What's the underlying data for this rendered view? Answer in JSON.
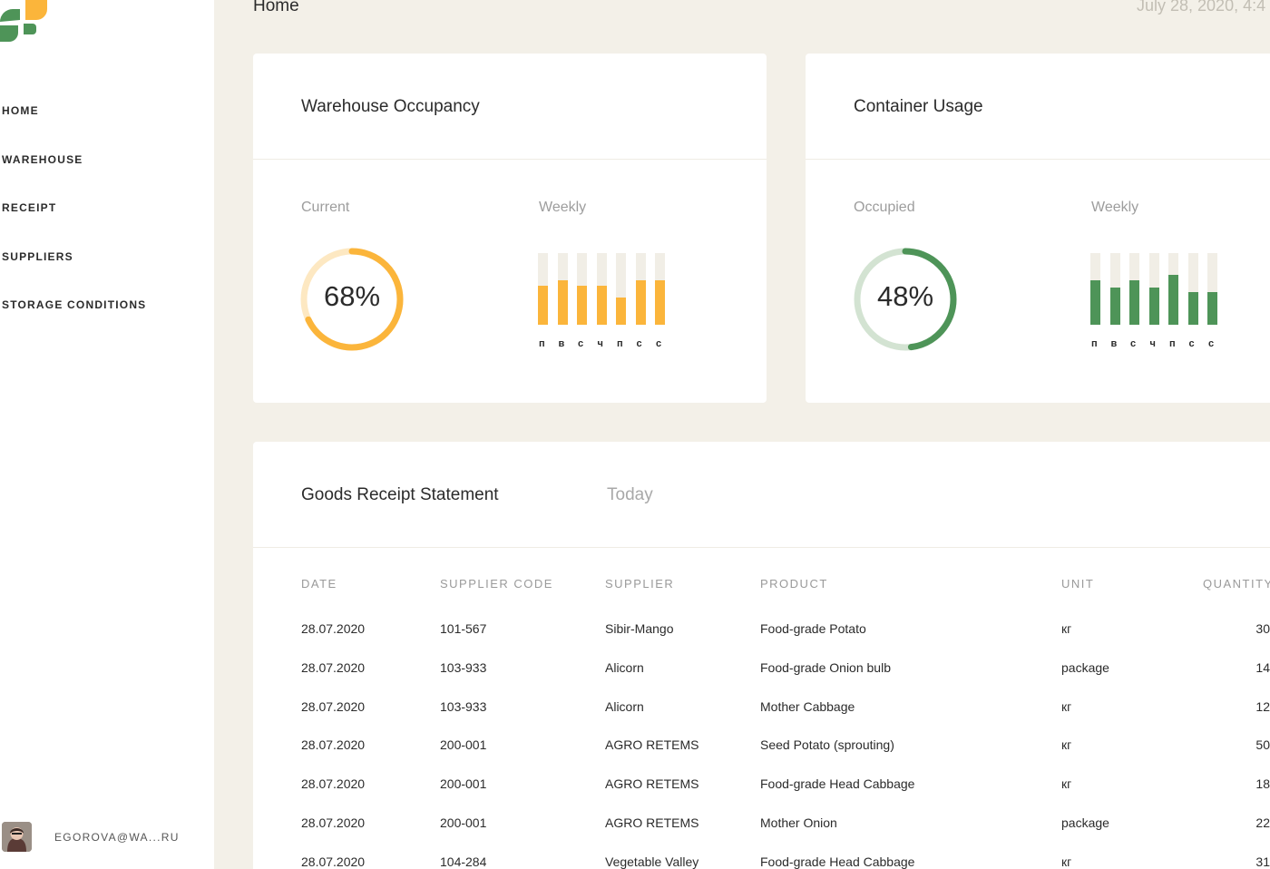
{
  "colors": {
    "accent_yellow": "#fbb53b",
    "accent_green": "#4e9458",
    "background": "#f3f0e8"
  },
  "sidebar": {
    "items": [
      {
        "label": "HOME"
      },
      {
        "label": "WAREHOUSE"
      },
      {
        "label": "RECEIPT"
      },
      {
        "label": "SUPPLIERS"
      },
      {
        "label": "STORAGE CONDITIONS"
      }
    ],
    "user_email": "EGOROVA@WA...RU"
  },
  "header": {
    "title": "Home",
    "date": "July 28, 2020, 4:4"
  },
  "occupancy": {
    "title": "Warehouse Occupancy",
    "current_label": "Current",
    "weekly_label": "Weekly",
    "current_value": "68%",
    "current_fraction": 0.68,
    "weekly_fractions": [
      0.54,
      0.62,
      0.54,
      0.54,
      0.38,
      0.62,
      0.62
    ],
    "days": [
      "п",
      "в",
      "с",
      "ч",
      "п",
      "с",
      "с"
    ]
  },
  "container": {
    "title": "Container Usage",
    "occupied_label": "Occupied",
    "weekly_label": "Weekly",
    "occupied_value": "48%",
    "occupied_fraction": 0.48,
    "weekly_fractions": [
      0.62,
      0.52,
      0.62,
      0.52,
      0.7,
      0.46,
      0.46
    ],
    "days": [
      "п",
      "в",
      "с",
      "ч",
      "п",
      "с",
      "с"
    ]
  },
  "receipt": {
    "title": "Goods Receipt Statement",
    "period": "Today",
    "headers": [
      "DATE",
      "SUPPLIER CODE",
      "SUPPLIER",
      "PRODUCT",
      "UNIT",
      "QUANTITY"
    ],
    "rows": [
      [
        "28.07.2020",
        "101-567",
        "Sibir-Mango",
        "Food-grade Potato",
        "кг",
        "30"
      ],
      [
        "28.07.2020",
        "103-933",
        "Alicorn",
        "Food-grade Onion bulb",
        "package",
        "14"
      ],
      [
        "28.07.2020",
        "103-933",
        "Alicorn",
        "Mother Cabbage",
        "кг",
        "12"
      ],
      [
        "28.07.2020",
        "200-001",
        "AGRO RETEMS",
        "Seed Potato (sprouting)",
        "кг",
        "50"
      ],
      [
        "28.07.2020",
        "200-001",
        "AGRO RETEMS",
        "Food-grade Head Cabbage",
        "кг",
        "18"
      ],
      [
        "28.07.2020",
        "200-001",
        "AGRO RETEMS",
        "Mother Onion",
        "package",
        "22"
      ],
      [
        "28.07.2020",
        "104-284",
        "Vegetable Valley",
        "Food-grade Head Cabbage",
        "кг",
        "31"
      ]
    ]
  }
}
